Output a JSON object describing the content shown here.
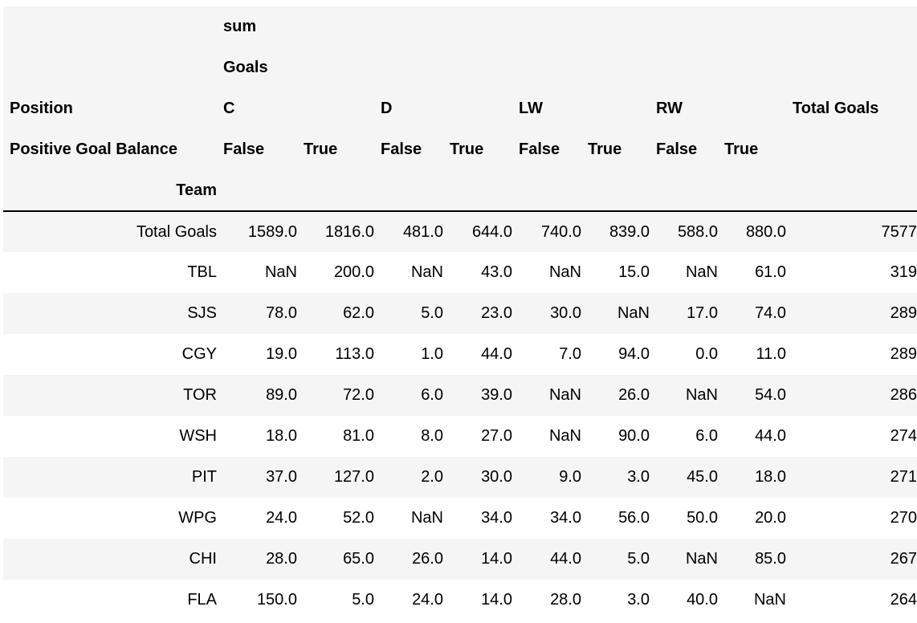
{
  "header": {
    "level1": {
      "label": "sum"
    },
    "level2": {
      "label": "Goals"
    },
    "position_row": {
      "index_label": "Position",
      "groups": [
        "C",
        "D",
        "LW",
        "RW"
      ],
      "total_label": "Total Goals"
    },
    "balance_row": {
      "index_label": "Positive Goal Balance",
      "values": [
        "False",
        "True",
        "False",
        "True",
        "False",
        "True",
        "False",
        "True"
      ]
    },
    "team_row": {
      "index_label": "Team"
    }
  },
  "rows": [
    {
      "team": "Total Goals",
      "values": [
        "1589.0",
        "1816.0",
        "481.0",
        "644.0",
        "740.0",
        "839.0",
        "588.0",
        "880.0"
      ],
      "total": "7577"
    },
    {
      "team": "TBL",
      "values": [
        "NaN",
        "200.0",
        "NaN",
        "43.0",
        "NaN",
        "15.0",
        "NaN",
        "61.0"
      ],
      "total": "319"
    },
    {
      "team": "SJS",
      "values": [
        "78.0",
        "62.0",
        "5.0",
        "23.0",
        "30.0",
        "NaN",
        "17.0",
        "74.0"
      ],
      "total": "289"
    },
    {
      "team": "CGY",
      "values": [
        "19.0",
        "113.0",
        "1.0",
        "44.0",
        "7.0",
        "94.0",
        "0.0",
        "11.0"
      ],
      "total": "289"
    },
    {
      "team": "TOR",
      "values": [
        "89.0",
        "72.0",
        "6.0",
        "39.0",
        "NaN",
        "26.0",
        "NaN",
        "54.0"
      ],
      "total": "286"
    },
    {
      "team": "WSH",
      "values": [
        "18.0",
        "81.0",
        "8.0",
        "27.0",
        "NaN",
        "90.0",
        "6.0",
        "44.0"
      ],
      "total": "274"
    },
    {
      "team": "PIT",
      "values": [
        "37.0",
        "127.0",
        "2.0",
        "30.0",
        "9.0",
        "3.0",
        "45.0",
        "18.0"
      ],
      "total": "271"
    },
    {
      "team": "WPG",
      "values": [
        "24.0",
        "52.0",
        "NaN",
        "34.0",
        "34.0",
        "56.0",
        "50.0",
        "20.0"
      ],
      "total": "270"
    },
    {
      "team": "CHI",
      "values": [
        "28.0",
        "65.0",
        "26.0",
        "14.0",
        "44.0",
        "5.0",
        "NaN",
        "85.0"
      ],
      "total": "267"
    },
    {
      "team": "FLA",
      "values": [
        "150.0",
        "5.0",
        "24.0",
        "14.0",
        "28.0",
        "3.0",
        "40.0",
        "NaN"
      ],
      "total": "264"
    }
  ]
}
